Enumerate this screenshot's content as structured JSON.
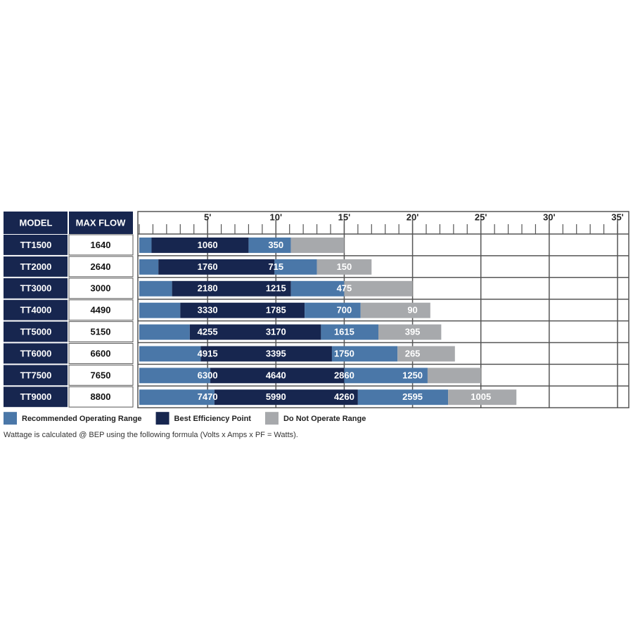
{
  "chart_data": {
    "type": "pump-range",
    "columns": [
      "MODEL",
      "MAX FLOW"
    ],
    "series": [
      {
        "name": "Recommended Operating Range",
        "color": "#4a77a8"
      },
      {
        "name": "Best Efficiency Point",
        "color": "#17264f"
      },
      {
        "name": "Do Not Operate Range",
        "color": "#a7a9ac"
      }
    ],
    "segment_series": [
      0,
      1,
      0,
      2
    ],
    "xlim": [
      0,
      35
    ],
    "xticks": [
      {
        "value": 5,
        "label": "5'"
      },
      {
        "value": 10,
        "label": "10'"
      },
      {
        "value": 15,
        "label": "15'"
      },
      {
        "value": 20,
        "label": "20'"
      },
      {
        "value": 25,
        "label": "25'"
      },
      {
        "value": 30,
        "label": "30'"
      },
      {
        "value": 35,
        "label": "35'"
      }
    ],
    "grid": true,
    "rows": [
      {
        "model": "TT1500",
        "max_flow": "1640",
        "segments": [
          0.9,
          7.1,
          3.1,
          3.9
        ],
        "flows": [
          "1060",
          "350"
        ]
      },
      {
        "model": "TT2000",
        "max_flow": "2640",
        "segments": [
          1.4,
          8.5,
          3.1,
          4.0
        ],
        "flows": [
          "1760",
          "715",
          "150"
        ]
      },
      {
        "model": "TT3000",
        "max_flow": "3000",
        "segments": [
          2.4,
          8.7,
          3.9,
          5.0
        ],
        "flows": [
          "2180",
          "1215",
          "475"
        ]
      },
      {
        "model": "TT4000",
        "max_flow": "4490",
        "segments": [
          3.0,
          9.1,
          4.1,
          5.1
        ],
        "flows": [
          "3330",
          "1785",
          "700",
          "90"
        ]
      },
      {
        "model": "TT5000",
        "max_flow": "5150",
        "segments": [
          3.7,
          9.6,
          4.2,
          4.6
        ],
        "flows": [
          "4255",
          "3170",
          "1615",
          "395"
        ]
      },
      {
        "model": "TT6000",
        "max_flow": "6600",
        "segments": [
          4.5,
          9.6,
          4.8,
          4.2
        ],
        "flows": [
          "4915",
          "3395",
          "1750",
          "265"
        ]
      },
      {
        "model": "TT7500",
        "max_flow": "7650",
        "segments": [
          5.2,
          9.8,
          6.1,
          3.9
        ],
        "flows": [
          "6300",
          "4640",
          "2860",
          "1250"
        ]
      },
      {
        "model": "TT9000",
        "max_flow": "8800",
        "segments": [
          5.5,
          10.5,
          6.6,
          5.0
        ],
        "flows": [
          "7470",
          "5990",
          "4260",
          "2595",
          "1005"
        ]
      }
    ],
    "footnote": "Wattage is calculated @ BEP using the following formula   (Volts x Amps x PF = Watts)."
  }
}
